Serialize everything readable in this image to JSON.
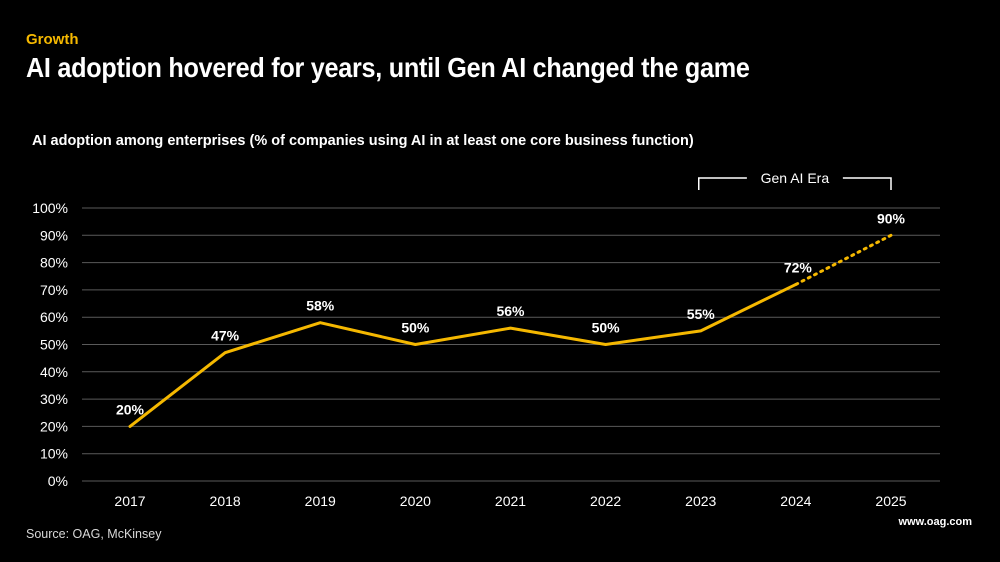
{
  "header": {
    "kicker": "Growth",
    "headline": "AI adoption hovered for years, until Gen AI changed the game"
  },
  "footer": {
    "source": "Source: OAG, McKinsey",
    "brand": "www.oag.com"
  },
  "chart_data": {
    "type": "line",
    "title": "AI adoption among enterprises (% of companies using AI in at least one core business function)",
    "xlabel": "",
    "ylabel": "",
    "categories": [
      "2017",
      "2018",
      "2019",
      "2020",
      "2021",
      "2022",
      "2023",
      "2024",
      "2025"
    ],
    "series": [
      {
        "name": "AI adoption",
        "values": [
          20,
          47,
          58,
          50,
          56,
          50,
          55,
          72,
          90
        ],
        "labels": [
          "20%",
          "47%",
          "58%",
          "50%",
          "56%",
          "50%",
          "55%",
          "72%",
          "90%"
        ],
        "projected_from_index": 7,
        "color": "#f5b800"
      }
    ],
    "ylim": [
      0,
      100
    ],
    "yticks": [
      0,
      10,
      20,
      30,
      40,
      50,
      60,
      70,
      80,
      90,
      100
    ],
    "ytick_labels": [
      "0%",
      "10%",
      "20%",
      "30%",
      "40%",
      "50%",
      "60%",
      "70%",
      "80%",
      "90%",
      "100%"
    ],
    "grid": true,
    "annotation": {
      "label": "Gen AI Era",
      "from_category": "2023",
      "to_category": "2025"
    },
    "colors": {
      "line": "#f5b800",
      "grid": "#5a5a5a",
      "text": "#ffffff"
    }
  }
}
